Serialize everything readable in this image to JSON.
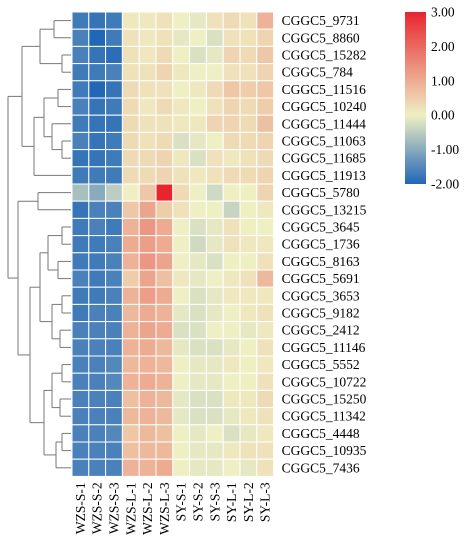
{
  "chart_data": {
    "type": "heatmap",
    "title": "",
    "xlabel": "",
    "ylabel": "",
    "columns": [
      "WZS-S-1",
      "WZS-S-2",
      "WZS-S-3",
      "WZS-L-1",
      "WZS-L-2",
      "WZS-L-3",
      "SY-S-1",
      "SY-S-2",
      "SY-S-3",
      "SY-L-1",
      "SY-L-2",
      "SY-L-3"
    ],
    "rows": [
      "CGGC5_9731",
      "CGGC5_8860",
      "CGGC5_15282",
      "CGGC5_784",
      "CGGC5_11516",
      "CGGC5_10240",
      "CGGC5_11444",
      "CGGC5_11063",
      "CGGC5_11685",
      "CGGC5_11913",
      "CGGC5_5780",
      "CGGC5_13215",
      "CGGC5_3645",
      "CGGC5_1736",
      "CGGC5_8163",
      "CGGC5_5691",
      "CGGC5_3653",
      "CGGC5_9182",
      "CGGC5_2412",
      "CGGC5_11146",
      "CGGC5_5552",
      "CGGC5_10722",
      "CGGC5_15250",
      "CGGC5_11342",
      "CGGC5_4448",
      "CGGC5_10935",
      "CGGC5_7436"
    ],
    "values": [
      [
        -1.7,
        -1.8,
        -1.7,
        0.1,
        0.1,
        0.2,
        0.0,
        -0.1,
        0.2,
        0.3,
        0.2,
        0.9
      ],
      [
        -1.6,
        -2.0,
        -1.7,
        0.2,
        0.1,
        0.2,
        -0.1,
        0.0,
        -0.2,
        0.2,
        0.2,
        0.4
      ],
      [
        -1.6,
        -1.8,
        -1.9,
        0.2,
        0.1,
        0.3,
        0.0,
        -0.2,
        -0.1,
        0.4,
        0.3,
        0.6
      ],
      [
        -1.7,
        -1.7,
        -1.6,
        0.2,
        0.2,
        0.4,
        0.1,
        0.0,
        0.0,
        0.2,
        0.2,
        0.4
      ],
      [
        -1.7,
        -2.0,
        -1.8,
        0.3,
        0.2,
        0.2,
        0.0,
        0.1,
        0.3,
        0.6,
        0.5,
        0.6
      ],
      [
        -1.6,
        -1.8,
        -1.7,
        0.3,
        0.1,
        0.3,
        0.1,
        0.0,
        0.2,
        0.4,
        0.3,
        0.5
      ],
      [
        -1.7,
        -1.8,
        -1.8,
        0.3,
        0.2,
        0.2,
        0.1,
        0.1,
        0.4,
        0.4,
        0.3,
        0.7
      ],
      [
        -1.6,
        -1.8,
        -1.7,
        0.3,
        0.2,
        0.3,
        -0.2,
        -0.1,
        0.0,
        0.3,
        0.3,
        0.4
      ],
      [
        -1.8,
        -1.8,
        -1.7,
        0.3,
        0.3,
        0.4,
        0.1,
        -0.2,
        0.2,
        0.1,
        0.2,
        0.3
      ],
      [
        -1.7,
        -1.7,
        -1.7,
        0.3,
        0.3,
        0.4,
        0.2,
        0.1,
        0.2,
        0.3,
        0.3,
        0.4
      ],
      [
        -0.7,
        -1.0,
        -0.5,
        0.0,
        0.6,
        3.0,
        0.3,
        0.0,
        -0.3,
        0.0,
        0.0,
        0.4
      ],
      [
        -1.8,
        -1.6,
        -1.6,
        0.6,
        1.1,
        0.5,
        0.2,
        0.0,
        0.0,
        -0.4,
        0.0,
        0.1
      ],
      [
        -1.7,
        -1.6,
        -1.7,
        0.9,
        1.3,
        1.0,
        0.0,
        -0.2,
        -0.1,
        0.2,
        0.0,
        0.0
      ],
      [
        -1.7,
        -1.7,
        -1.6,
        1.0,
        1.2,
        1.0,
        0.0,
        -0.3,
        -0.1,
        0.2,
        0.1,
        0.1
      ],
      [
        -1.7,
        -1.7,
        -1.6,
        0.9,
        1.3,
        1.1,
        0.0,
        -0.1,
        -0.2,
        0.0,
        0.0,
        0.2
      ],
      [
        -1.6,
        -1.7,
        -1.6,
        0.5,
        1.1,
        0.7,
        0.1,
        -0.1,
        0.0,
        0.1,
        0.2,
        0.8
      ],
      [
        -1.7,
        -1.7,
        -1.6,
        0.9,
        1.2,
        1.0,
        0.0,
        -0.2,
        -0.1,
        0.1,
        0.1,
        0.1
      ],
      [
        -1.7,
        -1.6,
        -1.6,
        0.8,
        1.0,
        0.9,
        -0.1,
        -0.2,
        -0.1,
        0.0,
        0.1,
        0.2
      ],
      [
        -1.6,
        -1.6,
        -1.6,
        0.9,
        1.1,
        1.0,
        -0.2,
        -0.2,
        0.0,
        0.0,
        -0.1,
        0.1
      ],
      [
        -1.6,
        -1.6,
        -1.6,
        0.9,
        1.0,
        0.8,
        -0.1,
        -0.2,
        -0.2,
        -0.1,
        0.0,
        0.2
      ],
      [
        -1.6,
        -1.6,
        -1.5,
        0.8,
        0.9,
        0.8,
        0.0,
        -0.1,
        -0.1,
        0.1,
        0.0,
        0.1
      ],
      [
        -1.6,
        -1.6,
        -1.5,
        0.9,
        1.0,
        0.9,
        0.0,
        -0.1,
        -0.1,
        0.0,
        0.0,
        0.2
      ],
      [
        -1.6,
        -1.6,
        -1.6,
        0.7,
        0.9,
        0.8,
        -0.1,
        -0.2,
        -0.2,
        0.1,
        0.1,
        0.3
      ],
      [
        -1.6,
        -1.6,
        -1.6,
        0.8,
        0.9,
        0.8,
        -0.1,
        -0.2,
        -0.2,
        -0.1,
        0.1,
        0.2
      ],
      [
        -1.6,
        -1.6,
        -1.5,
        0.6,
        0.8,
        0.7,
        0.0,
        -0.1,
        0.0,
        -0.2,
        -0.1,
        0.1
      ],
      [
        -1.6,
        -1.6,
        -1.6,
        0.7,
        0.8,
        0.8,
        0.0,
        -0.1,
        -0.1,
        0.1,
        0.2,
        0.2
      ],
      [
        -1.6,
        -1.6,
        -1.6,
        0.9,
        0.9,
        1.0,
        0.0,
        -0.1,
        -0.1,
        0.0,
        -0.1,
        0.2
      ]
    ],
    "color_scale": {
      "min": -2.0,
      "mid": 0.0,
      "max": 3.0,
      "low_color": "#2166b7",
      "mid_color": "#efefc4",
      "high_color": "#e8252e"
    },
    "legend": {
      "placement": "top-right",
      "ticks": [
        "3.00",
        "2.00",
        "1.00",
        "0.00",
        "-1.00",
        "-2.00"
      ]
    },
    "dendrogram": "left"
  }
}
